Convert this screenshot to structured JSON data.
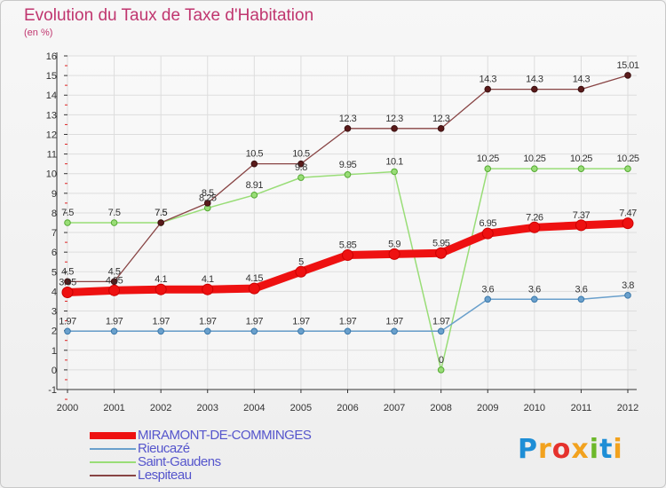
{
  "colors": {
    "title": "#c0366f",
    "legend_text": "#5555cc",
    "axis": "#333333",
    "grid": "#dddddd",
    "ticks_red": "#dd2222"
  },
  "logo": {
    "text": "Proxiti",
    "letters": [
      "P",
      "r",
      "o",
      "x",
      "i",
      "t",
      "i"
    ],
    "letter_colors": [
      "#1e8ed6",
      "#f2a21e",
      "#e5322d",
      "#f2a21e",
      "#6cb82a",
      "#1e8ed6",
      "#f2a21e"
    ]
  },
  "chart_data": {
    "type": "line",
    "title": "Evolution du Taux de Taxe d'Habitation",
    "subtitle": "(en %)",
    "x": [
      "2000",
      "2001",
      "2002",
      "2003",
      "2004",
      "2005",
      "2006",
      "2007",
      "2008",
      "2009",
      "2010",
      "2011",
      "2012"
    ],
    "ylim": [
      -1,
      16
    ],
    "yticks": [
      "-1",
      "0",
      "1",
      "2",
      "3",
      "4",
      "5",
      "6",
      "7",
      "8",
      "9",
      "10",
      "11",
      "12",
      "13",
      "14",
      "15",
      "16"
    ],
    "grid": true,
    "legend_position": "bottom-left",
    "series": [
      {
        "name": "MIRAMONT-DE-COMMINGES",
        "color": "#ee1111",
        "values": [
          3.95,
          4.05,
          4.1,
          4.1,
          4.15,
          5,
          5.85,
          5.9,
          5.95,
          6.95,
          7.26,
          7.37,
          7.47
        ],
        "labels": [
          "3.95",
          "4.05",
          "4.1",
          "4.1",
          "4.15",
          "5",
          "5.85",
          "5.9",
          "5.95",
          "6.95",
          "7.26",
          "7.37",
          "7.47"
        ]
      },
      {
        "name": "Rieucazé",
        "color": "#6aa0cc",
        "values": [
          1.97,
          1.97,
          1.97,
          1.97,
          1.97,
          1.97,
          1.97,
          1.97,
          1.97,
          3.6,
          3.6,
          3.6,
          3.8
        ],
        "labels": [
          "1.97",
          "1.97",
          "1.97",
          "1.97",
          "1.97",
          "1.97",
          "1.97",
          "1.97",
          "1.97",
          "3.6",
          "3.6",
          "3.6",
          "3.8"
        ]
      },
      {
        "name": "Saint-Gaudens",
        "color": "#99dd77",
        "values": [
          7.5,
          7.5,
          7.5,
          8.25,
          8.91,
          9.8,
          9.95,
          10.1,
          0,
          10.25,
          10.25,
          10.25,
          10.25
        ],
        "labels": [
          "7.5",
          "7.5",
          "7.5",
          "8.25",
          "8.91",
          "9.8",
          "9.95",
          "10.1",
          "0",
          "10.25",
          "10.25",
          "10.25",
          "10.25"
        ]
      },
      {
        "name": "Lespiteau",
        "color": "#884444",
        "values": [
          4.5,
          4.5,
          7.5,
          8.5,
          10.5,
          10.5,
          12.3,
          12.3,
          12.3,
          14.3,
          14.3,
          14.3,
          15.01
        ],
        "labels": [
          "4.5",
          "4.5",
          "7.5",
          "8.5",
          "10.5",
          "10.5",
          "12.3",
          "12.3",
          "12.3",
          "14.3",
          "14.3",
          "14.3",
          "15.01"
        ]
      }
    ]
  }
}
